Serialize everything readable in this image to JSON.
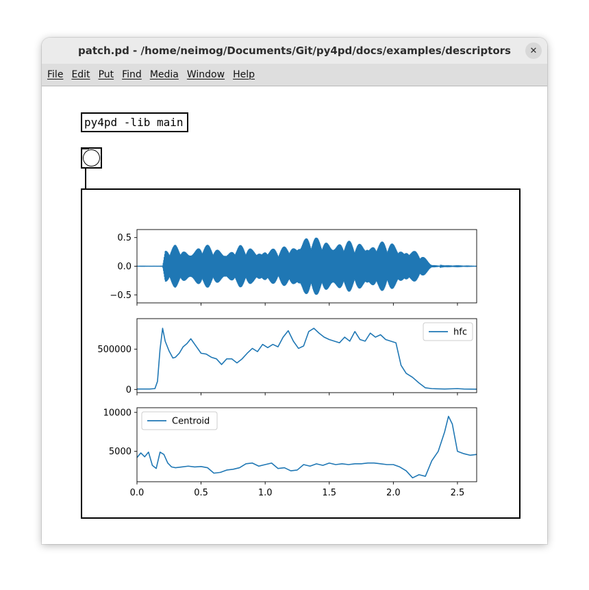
{
  "window": {
    "title": "patch.pd  - /home/neimog/Documents/Git/py4pd/docs/examples/descriptors",
    "close_glyph": "✕"
  },
  "menubar": {
    "items": [
      "File",
      "Edit",
      "Put",
      "Find",
      "Media",
      "Window",
      "Help"
    ]
  },
  "patch": {
    "object_text": "py4pd -lib main",
    "bang_icon": "bang-circle"
  },
  "chart_data": [
    {
      "type": "line",
      "x": [
        0,
        0.2,
        0.22,
        0.3,
        0.4,
        0.5,
        0.6,
        0.7,
        0.8,
        0.9,
        1.0,
        1.1,
        1.2,
        1.3,
        1.4,
        1.5,
        1.6,
        1.7,
        1.8,
        1.9,
        2.0,
        2.1,
        2.2,
        2.3,
        2.4,
        2.65
      ],
      "envelope": [
        0.002,
        0.003,
        0.3,
        0.38,
        0.32,
        0.4,
        0.35,
        0.32,
        0.38,
        0.33,
        0.38,
        0.3,
        0.42,
        0.58,
        0.5,
        0.53,
        0.48,
        0.42,
        0.5,
        0.45,
        0.42,
        0.38,
        0.25,
        0.03,
        0.006,
        0.003
      ],
      "yticks": [
        "0.5",
        "0.0",
        "−0.5"
      ],
      "ytick_values": [
        0.5,
        0.0,
        -0.5
      ],
      "ylim": [
        -0.64,
        0.64
      ],
      "xlim": [
        0.0,
        2.65
      ],
      "color": "#1f77b4"
    },
    {
      "type": "line",
      "series": [
        {
          "name": "hfc",
          "x": [
            0,
            0.05,
            0.1,
            0.14,
            0.16,
            0.18,
            0.2,
            0.22,
            0.25,
            0.28,
            0.3,
            0.33,
            0.36,
            0.39,
            0.42,
            0.46,
            0.5,
            0.54,
            0.58,
            0.62,
            0.66,
            0.7,
            0.74,
            0.78,
            0.82,
            0.86,
            0.9,
            0.94,
            0.98,
            1.02,
            1.06,
            1.1,
            1.14,
            1.18,
            1.22,
            1.26,
            1.3,
            1.34,
            1.38,
            1.42,
            1.46,
            1.5,
            1.54,
            1.58,
            1.62,
            1.66,
            1.7,
            1.74,
            1.78,
            1.82,
            1.86,
            1.9,
            1.94,
            1.98,
            2.02,
            2.06,
            2.1,
            2.15,
            2.2,
            2.25,
            2.3,
            2.4,
            2.5,
            2.55,
            2.65
          ],
          "values": [
            5000,
            5000,
            5000,
            10000,
            100000,
            500000,
            760000,
            600000,
            480000,
            390000,
            400000,
            450000,
            530000,
            570000,
            630000,
            540000,
            450000,
            440000,
            400000,
            380000,
            310000,
            380000,
            380000,
            330000,
            380000,
            450000,
            510000,
            470000,
            560000,
            520000,
            560000,
            530000,
            650000,
            730000,
            600000,
            510000,
            540000,
            720000,
            760000,
            700000,
            650000,
            620000,
            600000,
            580000,
            650000,
            600000,
            720000,
            620000,
            600000,
            700000,
            650000,
            680000,
            620000,
            600000,
            580000,
            300000,
            200000,
            150000,
            80000,
            20000,
            10000,
            5000,
            10000,
            5000,
            3000
          ]
        }
      ],
      "yticks": [
        "500000",
        "0"
      ],
      "ytick_values": [
        500000,
        0
      ],
      "ylim": [
        -40000,
        880000
      ],
      "xlim": [
        0.0,
        2.65
      ],
      "legend": "top-right",
      "color": "#1f77b4"
    },
    {
      "type": "line",
      "series": [
        {
          "name": "Centroid",
          "x": [
            0,
            0.03,
            0.06,
            0.09,
            0.12,
            0.15,
            0.18,
            0.21,
            0.24,
            0.27,
            0.3,
            0.35,
            0.4,
            0.45,
            0.5,
            0.55,
            0.6,
            0.65,
            0.7,
            0.75,
            0.8,
            0.85,
            0.9,
            0.95,
            1.0,
            1.05,
            1.1,
            1.15,
            1.2,
            1.25,
            1.3,
            1.35,
            1.4,
            1.45,
            1.5,
            1.55,
            1.6,
            1.65,
            1.7,
            1.75,
            1.8,
            1.85,
            1.9,
            1.95,
            2.0,
            2.05,
            2.1,
            2.15,
            2.2,
            2.25,
            2.3,
            2.35,
            2.4,
            2.43,
            2.46,
            2.5,
            2.55,
            2.6,
            2.65
          ],
          "values": [
            4200,
            4800,
            4300,
            4900,
            3200,
            2800,
            4900,
            4600,
            3500,
            3000,
            2900,
            3000,
            3100,
            3000,
            3050,
            2900,
            2200,
            2300,
            2600,
            2700,
            2900,
            3400,
            3500,
            3100,
            3300,
            3500,
            2800,
            2900,
            2500,
            2600,
            3300,
            3100,
            3400,
            3200,
            3500,
            3300,
            3400,
            3300,
            3400,
            3400,
            3500,
            3500,
            3400,
            3300,
            3300,
            3000,
            2500,
            1600,
            2000,
            1800,
            3800,
            5000,
            7500,
            9500,
            8500,
            5000,
            4700,
            4500,
            4600
          ]
        }
      ],
      "yticks": [
        "10000",
        "5000"
      ],
      "ytick_values": [
        10000,
        5000
      ],
      "ylim": [
        1100,
        10600
      ],
      "xlim": [
        0.0,
        2.65
      ],
      "xticks": [
        "0.0",
        "0.5",
        "1.0",
        "1.5",
        "2.0",
        "2.5"
      ],
      "xtick_values": [
        0.0,
        0.5,
        1.0,
        1.5,
        2.0,
        2.5
      ],
      "legend": "top-left",
      "color": "#1f77b4"
    }
  ]
}
